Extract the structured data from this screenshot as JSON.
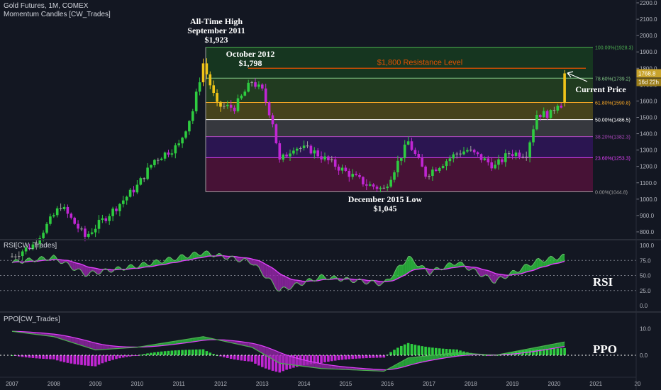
{
  "header": {
    "title": "Gold Futures, 1M, COMEX",
    "indicator": "Momentum Candles [CW_Trades]"
  },
  "rsi_panel": {
    "title": "RSI[CW_Trades]",
    "label": "RSI",
    "ticks": [
      "100.0",
      "75.0",
      "50.0",
      "25.0",
      "0.0"
    ]
  },
  "ppo_panel": {
    "title": "PPO[CW_Trades]",
    "label": "PPO",
    "ticks": [
      "10.0",
      "0.0"
    ]
  },
  "price_axis": {
    "ticks": [
      "2200.0",
      "2100.0",
      "2000.0",
      "1900.0",
      "1800.0",
      "1700.0",
      "1600.0",
      "1500.0",
      "1400.0",
      "1300.0",
      "1200.0",
      "1100.0",
      "1000.0",
      "900.0",
      "800.0"
    ],
    "current_price": "1768.8",
    "countdown": "16d 22h"
  },
  "time_axis": [
    "2007",
    "2008",
    "2009",
    "2010",
    "2011",
    "2012",
    "2013",
    "2014",
    "2015",
    "2016",
    "2017",
    "2018",
    "2019",
    "2020",
    "2021",
    "20"
  ],
  "fib_levels": [
    {
      "label": "100.00%(1928.3)",
      "price": 1928.3,
      "color": "#4caf50"
    },
    {
      "label": "78.60%(1739.2)",
      "price": 1739.2,
      "color": "#81c784"
    },
    {
      "label": "61.80%(1590.8)",
      "price": 1590.8,
      "color": "#f9a825"
    },
    {
      "label": "50.00%(1486.5)",
      "price": 1486.5,
      "color": "#ffffff"
    },
    {
      "label": "38.20%(1382.3)",
      "price": 1382.3,
      "color": "#ab47bc"
    },
    {
      "label": "23.60%(1253.3)",
      "price": 1253.3,
      "color": "#e040fb"
    },
    {
      "label": "0.00%(1044.8)",
      "price": 1044.8,
      "color": "#9e9e9e"
    }
  ],
  "annotations": {
    "ath": [
      "All-Time High",
      "September 2011",
      "$1,923"
    ],
    "oct2012": [
      "October 2012",
      "$1,798"
    ],
    "low2015": [
      "December 2015 Low",
      "$1,045"
    ],
    "resistance": "$1,800 Resistance Level",
    "current": "Current Price"
  },
  "colors": {
    "background": "#131722",
    "bull": "#2ecc40",
    "bear": "#c026d3",
    "neutral": "#9e9e9e",
    "strong": "#f0c419",
    "resistance": "#e65100",
    "rsi_line": "#e040fb",
    "ppo_line": "#4caf50"
  },
  "chart_data": {
    "type": "candlestick",
    "title": "Gold Futures, 1M, COMEX",
    "x": [
      "2007-01",
      "2007-07",
      "2008-01",
      "2008-03",
      "2008-10",
      "2009-06",
      "2010-01",
      "2010-06",
      "2011-01",
      "2011-05",
      "2011-08",
      "2011-12",
      "2012-05",
      "2012-10",
      "2013-01",
      "2013-04",
      "2013-06",
      "2013-10",
      "2014-03",
      "2014-12",
      "2015-07",
      "2015-12",
      "2016-07",
      "2016-12",
      "2017-09",
      "2017-12",
      "2018-08",
      "2018-12",
      "2019-05",
      "2019-08",
      "2019-12",
      "2020-02",
      "2020-03",
      "2020-04"
    ],
    "close": [
      650,
      720,
      900,
      960,
      770,
      930,
      1080,
      1240,
      1330,
      1540,
      1830,
      1570,
      1560,
      1720,
      1660,
      1470,
      1230,
      1320,
      1300,
      1180,
      1090,
      1060,
      1350,
      1150,
      1280,
      1300,
      1200,
      1280,
      1280,
      1520,
      1520,
      1590,
      1580,
      1768.8
    ],
    "ylim": [
      750,
      2250
    ],
    "series": [
      {
        "name": "RSI",
        "x": [
          "2007-01",
          "2008-01",
          "2008-10",
          "2010-01",
          "2011-08",
          "2012-10",
          "2013-06",
          "2014-06",
          "2015-12",
          "2016-07",
          "2017-01",
          "2017-09",
          "2018-08",
          "2019-08",
          "2020-04"
        ],
        "values": [
          72,
          80,
          52,
          66,
          88,
          72,
          25,
          48,
          36,
          80,
          55,
          72,
          40,
          74,
          82
        ]
      },
      {
        "name": "PPO",
        "x": [
          "2007-01",
          "2008-01",
          "2009-01",
          "2010-01",
          "2011-08",
          "2012-10",
          "2013-06",
          "2014-06",
          "2015-12",
          "2016-07",
          "2017-09",
          "2018-08",
          "2019-08",
          "2020-04"
        ],
        "values": [
          9,
          7,
          2,
          3,
          7,
          3,
          -3,
          -5,
          -6,
          -1,
          1,
          0,
          3,
          5
        ]
      }
    ],
    "annotations": [
      "All-Time High September 2011 $1,923",
      "October 2012 $1,798",
      "December 2015 Low $1,045",
      "$1,800 Resistance Level",
      "Current Price"
    ]
  }
}
